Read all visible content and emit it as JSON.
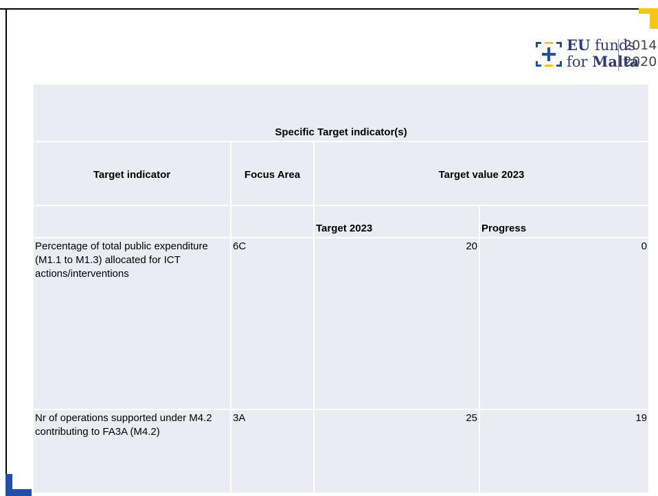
{
  "logo": {
    "eu": "EU",
    "funds": "funds",
    "for": "for",
    "malta": "Malta",
    "year_start": "2014",
    "year_end": "2020"
  },
  "table": {
    "title": "Specific Target indicator(s)",
    "headers": [
      "Target indicator",
      "Focus Area",
      "Target value 2023"
    ],
    "subheaders": [
      "Target 2023",
      "Progress"
    ],
    "rows": [
      [
        "Percentage of total public expenditure (M1.1 to M1.3) allocated for ICT actions/interventions",
        "6C",
        20,
        0
      ],
      [
        "Nr of operations supported under M4.2 contributing to FA3A (M4.2)",
        "3A",
        25,
        19
      ]
    ]
  }
}
